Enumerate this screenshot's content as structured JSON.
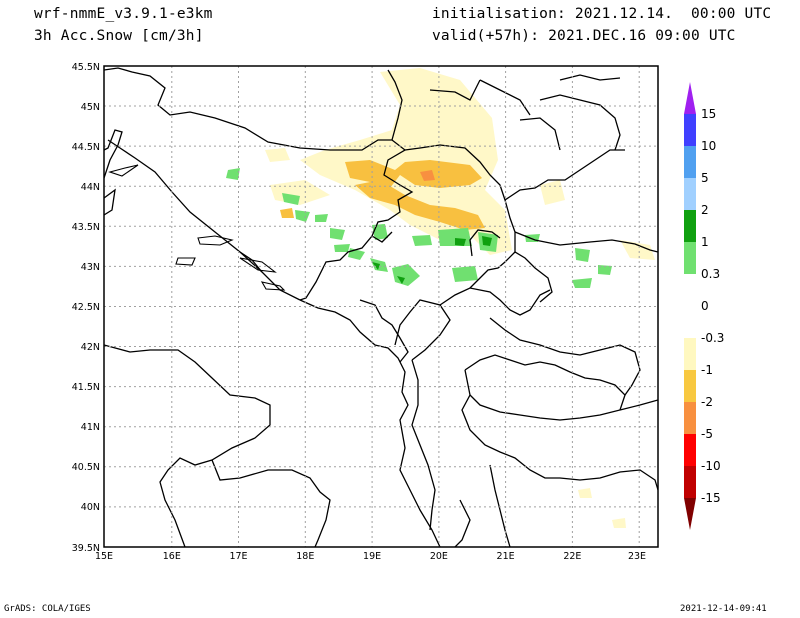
{
  "header": {
    "model": "wrf-nmmE_v3.9.1-e3km",
    "field": "3h Acc.Snow [cm/3h]",
    "init": "initialisation: 2021.12.14.  00:00 UTC",
    "valid": "valid(+57h): 2021.DEC.16 09:00 UTC"
  },
  "footer": {
    "credit": "GrADS: COLA/IGES",
    "timestamp": "2021-12-14-09:41"
  },
  "map": {
    "lon_ticks": [
      "15E",
      "16E",
      "17E",
      "18E",
      "19E",
      "20E",
      "21E",
      "22E",
      "23E"
    ],
    "lat_ticks": [
      "39.5N",
      "40N",
      "40.5N",
      "41N",
      "41.5N",
      "42N",
      "42.5N",
      "43N",
      "43.5N",
      "44N",
      "44.5N",
      "45N",
      "45.5N"
    ],
    "lon_range": [
      15,
      23.3
    ],
    "lat_range": [
      39.5,
      45.5
    ],
    "grid": true
  },
  "colorbar": {
    "labels": [
      "15",
      "10",
      "5",
      "2",
      "1",
      "0.3",
      "0",
      "-0.3",
      "-1",
      "-2",
      "-5",
      "-10",
      "-15"
    ],
    "colors": [
      "#a020f0",
      "#4040ff",
      "#50a0f0",
      "#a0d0ff",
      "#10a010",
      "#70e070",
      "#ffffff",
      "#fff8c0",
      "#f8c840",
      "#f89040",
      "#ff0000",
      "#c00000",
      "#800000"
    ]
  }
}
